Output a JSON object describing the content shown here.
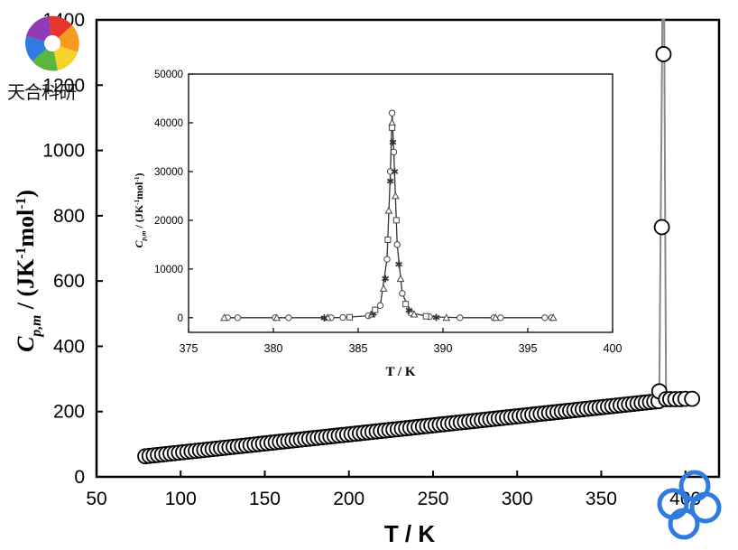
{
  "watermark": {
    "text": "天合科研",
    "icon": "pinwheel-logo-icon"
  },
  "corner_logo": {
    "icon": "ring-chain-logo-icon",
    "color": "#2f7be0"
  },
  "chart_data": [
    {
      "type": "scatter",
      "title": "",
      "xlabel": "T / K",
      "ylabel": "C_p,m / (JK^-1 mol^-1)",
      "ylabel_parts": {
        "main": "C",
        "sub": "p,m",
        "rest": " / (JK",
        "sup1": "-1",
        "mid": "mol",
        "sup2": "-1",
        "end": ")"
      },
      "xlim": [
        50,
        420
      ],
      "ylim": [
        0,
        1400
      ],
      "xticks": [
        50,
        100,
        150,
        200,
        250,
        300,
        350,
        400
      ],
      "yticks": [
        0,
        200,
        400,
        600,
        800,
        1000,
        1200,
        1400
      ],
      "xtick_labels": [
        "50",
        "100",
        "150",
        "200",
        "250",
        "300",
        "350",
        "400"
      ],
      "ytick_labels": [
        "0",
        "200",
        "400",
        "600",
        "800",
        "1000",
        "1200",
        "1400"
      ],
      "grid": false,
      "marker": "open-circle",
      "baseline_range": {
        "x_start": 79,
        "x_end": 384,
        "y_start": 63,
        "y_end": 232,
        "step": 2.5
      },
      "peak_points": [
        {
          "x": 384.5,
          "y": 262
        },
        {
          "x": 386,
          "y": 765
        },
        {
          "x": 387,
          "y": 1295
        },
        {
          "x": 388.5,
          "y": 238
        },
        {
          "x": 391,
          "y": 238
        },
        {
          "x": 394,
          "y": 238
        },
        {
          "x": 397,
          "y": 238
        },
        {
          "x": 400,
          "y": 239
        },
        {
          "x": 404,
          "y": 239
        }
      ],
      "line": [
        {
          "x": 384.5,
          "y": 262
        },
        {
          "x": 386.3,
          "y": 1400
        },
        {
          "x": 387.4,
          "y": 1400
        },
        {
          "x": 388.5,
          "y": 238
        }
      ]
    },
    {
      "type": "line",
      "title": "",
      "xlabel": "T / K",
      "ylabel_parts": {
        "main": "C",
        "sub": "p,m",
        "rest": " / (JK",
        "sup1": "-1",
        "mid": "mol",
        "sup2": "-1",
        "end": ")"
      },
      "xlim": [
        375,
        400
      ],
      "ylim": [
        -3000,
        50000
      ],
      "xticks": [
        375,
        380,
        385,
        390,
        395,
        400
      ],
      "yticks": [
        0,
        10000,
        20000,
        30000,
        40000,
        50000
      ],
      "xtick_labels": [
        "375",
        "380",
        "385",
        "390",
        "395",
        "400"
      ],
      "ytick_labels": [
        "0",
        "10000",
        "20000",
        "30000",
        "40000",
        "50000"
      ],
      "grid": false,
      "series": [
        {
          "marker": "circle",
          "x": [
            377.3,
            377.9,
            380.1,
            380.9,
            383.4,
            384.1,
            385.6,
            386.3,
            386.7,
            386.9,
            387.0,
            387.1,
            387.3,
            387.6,
            388.1,
            389.2,
            391.0,
            393.0,
            393.4,
            396.0,
            396.4
          ],
          "y": [
            0,
            0,
            0,
            0,
            0,
            50,
            400,
            2500,
            12000,
            30000,
            42000,
            34000,
            15000,
            5000,
            1000,
            200,
            0,
            0,
            0,
            0,
            0
          ]
        },
        {
          "marker": "triangle",
          "x": [
            377.1,
            380.2,
            383.2,
            385.8,
            386.5,
            386.8,
            387.0,
            387.2,
            387.5,
            388.3,
            390.2,
            393.1,
            396.5
          ],
          "y": [
            0,
            0,
            0,
            700,
            6000,
            22000,
            40000,
            25000,
            8000,
            700,
            0,
            0,
            0
          ]
        },
        {
          "marker": "star",
          "x": [
            383.0,
            385.9,
            386.6,
            386.9,
            387.05,
            387.15,
            387.4,
            388.0,
            389.6
          ],
          "y": [
            0,
            900,
            8000,
            28000,
            36000,
            30000,
            11000,
            1500,
            100
          ]
        },
        {
          "marker": "square",
          "x": [
            384.5,
            386.0,
            386.75,
            387.0,
            387.25,
            387.8,
            389.0
          ],
          "y": [
            100,
            1600,
            16000,
            39000,
            20000,
            2800,
            300
          ]
        }
      ]
    }
  ]
}
